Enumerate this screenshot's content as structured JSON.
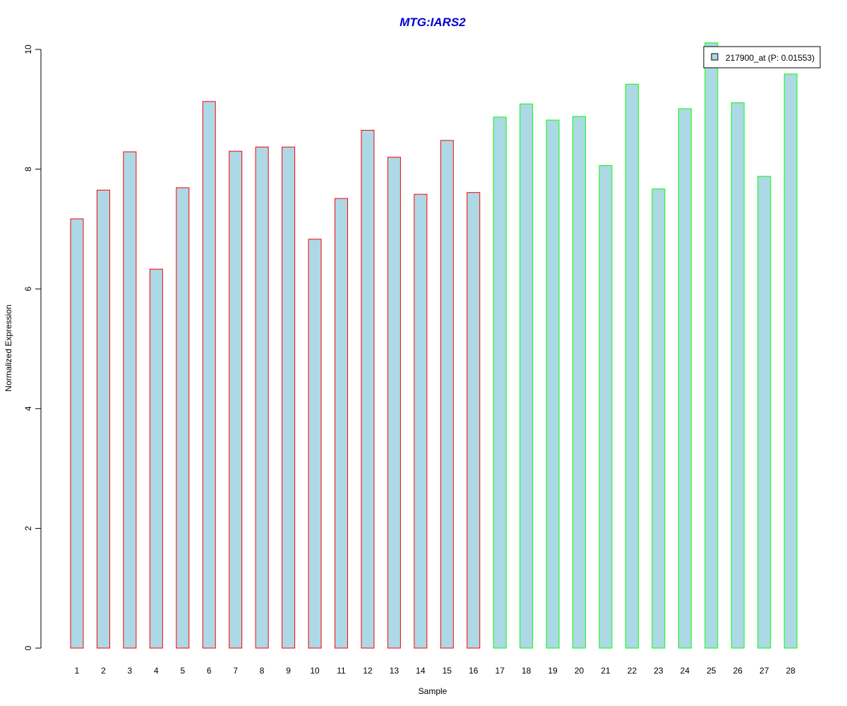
{
  "chart_data": {
    "type": "bar",
    "title": "MTG:IARS2",
    "xlabel": "Sample",
    "ylabel": "Normalized Expression",
    "ylim": [
      0,
      10
    ],
    "yticks": [
      0,
      2,
      4,
      6,
      8,
      10
    ],
    "grid": false,
    "legend": {
      "placement": "top-right",
      "entries": [
        "217900_at (P: 0.01553)"
      ]
    },
    "categories": [
      "1",
      "2",
      "3",
      "4",
      "5",
      "6",
      "7",
      "8",
      "9",
      "10",
      "11",
      "12",
      "13",
      "14",
      "15",
      "16",
      "17",
      "18",
      "19",
      "20",
      "21",
      "22",
      "23",
      "24",
      "25",
      "26",
      "27",
      "28"
    ],
    "values": [
      7.17,
      7.65,
      8.29,
      6.33,
      7.69,
      9.13,
      8.3,
      8.37,
      8.37,
      6.83,
      7.51,
      8.65,
      8.2,
      7.58,
      8.48,
      7.61,
      8.87,
      9.09,
      8.82,
      8.88,
      8.06,
      9.42,
      7.67,
      9.01,
      10.11,
      9.11,
      7.88,
      9.59
    ],
    "groups": [
      "red",
      "red",
      "red",
      "red",
      "red",
      "red",
      "red",
      "red",
      "red",
      "red",
      "red",
      "red",
      "red",
      "red",
      "red",
      "red",
      "green",
      "green",
      "green",
      "green",
      "green",
      "green",
      "green",
      "green",
      "green",
      "green",
      "green",
      "green"
    ]
  },
  "colors": {
    "bar_fill": "#add8e6",
    "group_red": "#ff0000",
    "group_green": "#00ff00",
    "title": "#0000cd",
    "axis": "#000000"
  }
}
